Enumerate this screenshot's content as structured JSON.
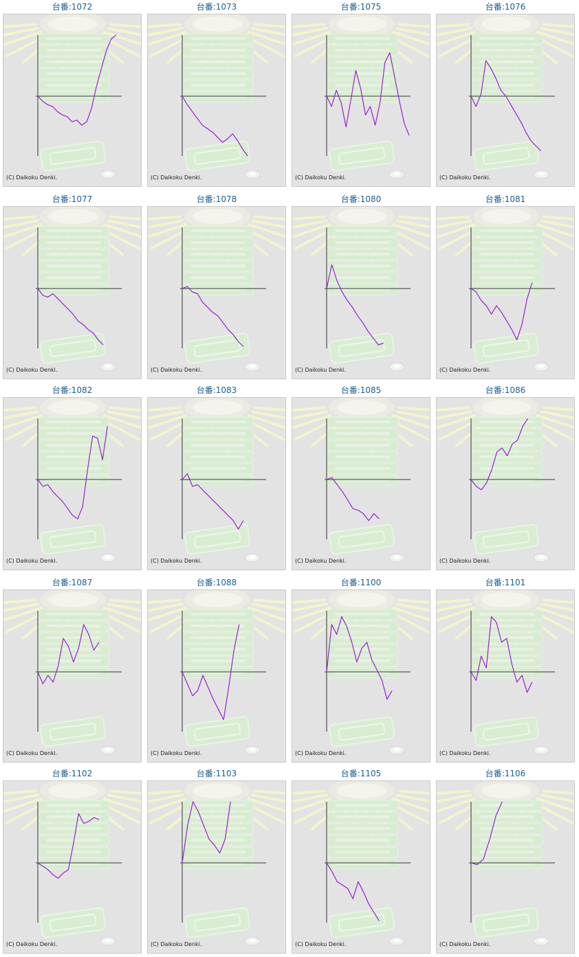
{
  "chart_data": [
    {
      "type": "line",
      "label": "台番:1072",
      "copyright": "(C) Daikoku Denki.",
      "series": [
        {
          "values": [
            0,
            -300,
            -500,
            -600,
            -900,
            -1100,
            -1200,
            -1500,
            -1400,
            -1700,
            -1500,
            -700,
            500,
            1400,
            2300,
            2900,
            3100
          ]
        }
      ]
    },
    {
      "type": "line",
      "label": "台番:1073",
      "copyright": "(C) Daikoku Denki.",
      "series": [
        {
          "values": [
            0,
            -500,
            -900,
            -1300,
            -1700,
            -1900,
            -2100,
            -2400,
            -2700,
            -2500,
            -2200,
            -2600,
            -3100,
            -3500
          ]
        }
      ]
    },
    {
      "type": "line",
      "label": "台番:1075",
      "copyright": "(C) Daikoku Denki.",
      "series": [
        {
          "values": [
            0,
            -600,
            300,
            -400,
            -1800,
            -200,
            1300,
            400,
            -1100,
            -600,
            -1700,
            -400,
            1700,
            2200,
            1000,
            -300,
            -1600,
            -2300
          ]
        }
      ]
    },
    {
      "type": "line",
      "label": "台番:1076",
      "copyright": "(C) Daikoku Denki.",
      "series": [
        {
          "values": [
            0,
            -600,
            100,
            1800,
            1400,
            900,
            300,
            0,
            -500,
            -1000,
            -1500,
            -2100,
            -2600,
            -2900,
            -3200
          ]
        }
      ]
    },
    {
      "type": "line",
      "label": "台番:1077",
      "copyright": "(C) Daikoku Denki.",
      "series": [
        {
          "values": [
            0,
            -400,
            -500,
            -300,
            -600,
            -900,
            -1200,
            -1500,
            -1900,
            -2100,
            -2400,
            -2600,
            -3000,
            -3300
          ]
        }
      ]
    },
    {
      "type": "line",
      "label": "台番:1078",
      "copyright": "(C) Daikoku Denki.",
      "series": [
        {
          "values": [
            0,
            100,
            -200,
            -300,
            -800,
            -1100,
            -1400,
            -1600,
            -2000,
            -2400,
            -2700,
            -3100,
            -3400
          ]
        }
      ]
    },
    {
      "type": "line",
      "label": "台番:1080",
      "copyright": "(C) Daikoku Denki.",
      "series": [
        {
          "values": [
            0,
            1200,
            400,
            -200,
            -700,
            -1100,
            -1600,
            -2000,
            -2500,
            -2900,
            -3300,
            -3200
          ]
        }
      ]
    },
    {
      "type": "line",
      "label": "台番:1081",
      "copyright": "(C) Daikoku Denki.",
      "series": [
        {
          "values": [
            0,
            -200,
            -700,
            -1000,
            -1500,
            -1000,
            -1400,
            -1900,
            -2400,
            -3000,
            -2100,
            -600,
            300
          ]
        }
      ]
    },
    {
      "type": "line",
      "label": "台番:1082",
      "copyright": "(C) Daikoku Denki.",
      "series": [
        {
          "values": [
            0,
            -400,
            -300,
            -700,
            -1000,
            -1300,
            -1700,
            -2100,
            -2300,
            -1600,
            500,
            2200,
            2100,
            1000,
            2700
          ]
        }
      ]
    },
    {
      "type": "line",
      "label": "台番:1083",
      "copyright": "(C) Daikoku Denki.",
      "series": [
        {
          "values": [
            0,
            300,
            -400,
            -300,
            -600,
            -900,
            -1200,
            -1500,
            -1800,
            -2100,
            -2400,
            -2900,
            -2400
          ]
        }
      ]
    },
    {
      "type": "line",
      "label": "台番:1085",
      "copyright": "(C) Daikoku Denki.",
      "series": [
        {
          "values": [
            0,
            100,
            -300,
            -700,
            -1200,
            -1700,
            -1800,
            -2000,
            -2400,
            -2000,
            -2300
          ]
        }
      ]
    },
    {
      "type": "line",
      "label": "台番:1086",
      "copyright": "(C) Daikoku Denki.",
      "series": [
        {
          "values": [
            0,
            -400,
            -600,
            -200,
            500,
            1400,
            1600,
            1200,
            1800,
            2000,
            2700,
            3100
          ]
        }
      ]
    },
    {
      "type": "line",
      "label": "台番:1087",
      "copyright": "(C) Daikoku Denki.",
      "series": [
        {
          "values": [
            0,
            -700,
            -200,
            -600,
            300,
            1700,
            1300,
            500,
            1200,
            2400,
            1900,
            1100,
            1500
          ]
        }
      ]
    },
    {
      "type": "line",
      "label": "台番:1088",
      "copyright": "(C) Daikoku Denki.",
      "series": [
        {
          "values": [
            0,
            -700,
            -1400,
            -1100,
            -200,
            -900,
            -1600,
            -2200,
            -2800,
            -900,
            1100,
            2400
          ]
        }
      ]
    },
    {
      "type": "line",
      "label": "台番:1100",
      "copyright": "(C) Daikoku Denki.",
      "series": [
        {
          "values": [
            0,
            2400,
            1900,
            2800,
            2300,
            1500,
            500,
            1200,
            1500,
            600,
            100,
            -500,
            -1600,
            -1100
          ]
        }
      ]
    },
    {
      "type": "line",
      "label": "台番:1101",
      "copyright": "(C) Daikoku Denki.",
      "series": [
        {
          "values": [
            0,
            -500,
            800,
            200,
            2800,
            2500,
            1500,
            1700,
            400,
            -600,
            -200,
            -1200,
            -600
          ]
        }
      ]
    },
    {
      "type": "line",
      "label": "台番:1102",
      "copyright": "(C) Daikoku Denki.",
      "series": [
        {
          "values": [
            0,
            -200,
            -400,
            -700,
            -900,
            -600,
            -400,
            1000,
            2500,
            2000,
            2100,
            2300,
            2200
          ]
        }
      ]
    },
    {
      "type": "line",
      "label": "台番:1103",
      "copyright": "(C) Daikoku Denki.",
      "series": [
        {
          "values": [
            0,
            1900,
            3100,
            2600,
            1900,
            1200,
            900,
            500,
            1200,
            3100
          ]
        }
      ]
    },
    {
      "type": "line",
      "label": "台番:1105",
      "copyright": "(C) Daikoku Denki.",
      "series": [
        {
          "values": [
            0,
            -500,
            -1100,
            -1300,
            -1500,
            -2100,
            -1100,
            -1700,
            -2400,
            -2900,
            -3400
          ]
        }
      ]
    },
    {
      "type": "line",
      "label": "台番:1106",
      "copyright": "(C) Daikoku Denki.",
      "series": [
        {
          "values": [
            0,
            -100,
            200,
            1200,
            2400,
            3100
          ]
        }
      ]
    }
  ]
}
